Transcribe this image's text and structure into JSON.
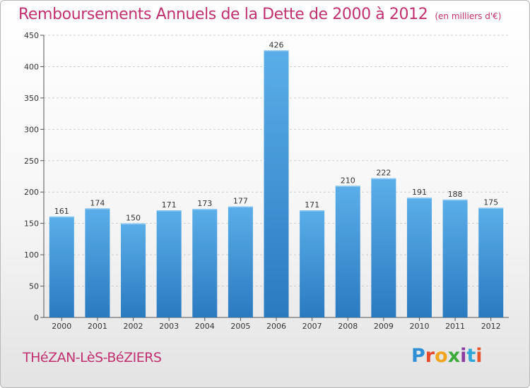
{
  "header": {
    "title": "Remboursements Annuels de la Dette de 2000 à 2012",
    "unit": "(en milliers d'€)"
  },
  "footer": {
    "town": "THéZAN-LèS-BéZIERS",
    "logo": "Proxiti"
  },
  "colors": {
    "bar_top": "#5aaee8",
    "bar_bottom": "#2a7ac0",
    "title": "#c0306e"
  },
  "chart_data": {
    "type": "bar",
    "categories": [
      "2000",
      "2001",
      "2002",
      "2003",
      "2004",
      "2005",
      "2006",
      "2007",
      "2008",
      "2009",
      "2010",
      "2011",
      "2012"
    ],
    "values": [
      161,
      174,
      150,
      171,
      173,
      177,
      426,
      171,
      210,
      222,
      191,
      188,
      175
    ],
    "title": "Remboursements Annuels de la Dette de 2000 à 2012",
    "xlabel": "",
    "ylabel": "",
    "ylim": [
      0,
      450
    ],
    "yticks": [
      0,
      50,
      100,
      150,
      200,
      250,
      300,
      350,
      400,
      450
    ],
    "grid": true,
    "data_labels": true
  }
}
